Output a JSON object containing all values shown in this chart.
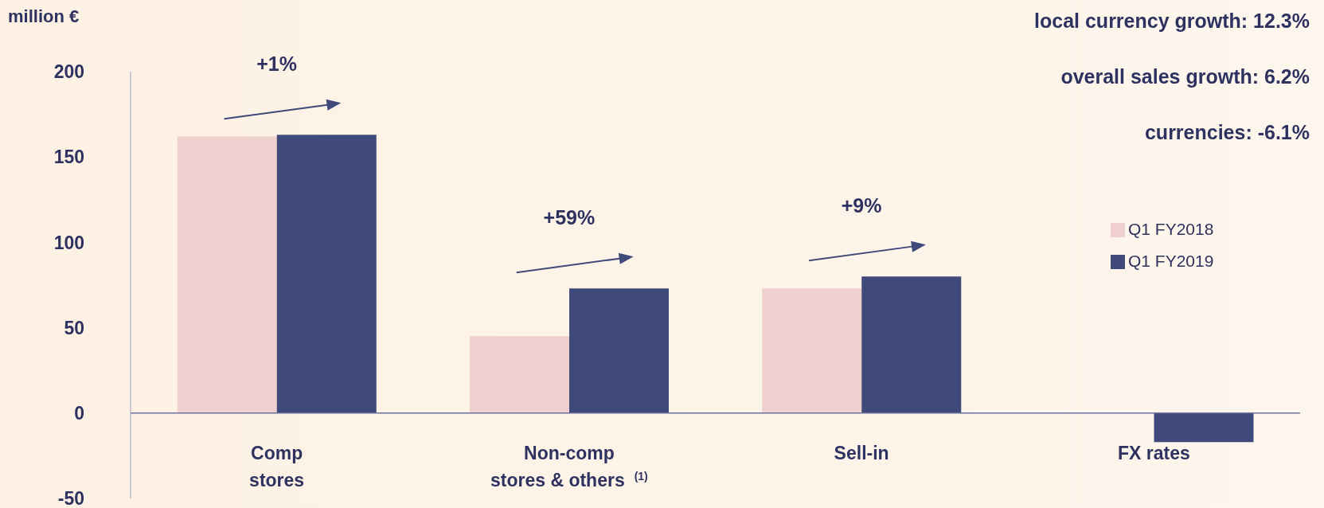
{
  "chart_data": {
    "type": "bar",
    "ylabel": "million €",
    "categories": [
      "Comp stores",
      "Non-comp stores & others$^{(1)}$",
      "Sell-in",
      "FX rates"
    ],
    "series": [
      {
        "name": "Q1 FY2018",
        "color": "#f0cfcf",
        "values": [
          162,
          45,
          73,
          null
        ]
      },
      {
        "name": "Q1 FY2019",
        "color": "#3f4a7a",
        "values": [
          163,
          73,
          80,
          -17
        ]
      }
    ],
    "ylim": [
      -50,
      200
    ],
    "yticks": [
      -50,
      0,
      50,
      100,
      150,
      200
    ],
    "grid": false,
    "legend": "right",
    "ref_lines": [
      {
        "axis": "y",
        "value": 0,
        "color": "#6b72a0"
      }
    ],
    "annotations": [
      "+1%",
      "+59%",
      "+9%",
      "local currency growth: 12.3%",
      "overall sales growth: 6.2%",
      "currencies: -6.1%"
    ]
  }
}
